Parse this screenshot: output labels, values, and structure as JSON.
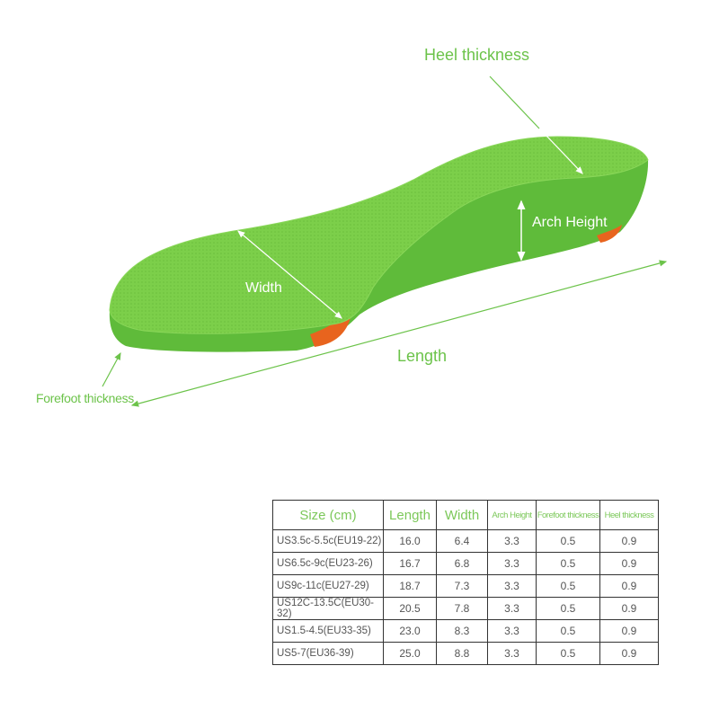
{
  "labels": {
    "heel_thickness": "Heel thickness",
    "arch_height": "Arch Height",
    "width": "Width",
    "length": "Length",
    "forefoot_thickness": "Forefoot thickness"
  },
  "colors": {
    "insole_top": "#7ccf4a",
    "insole_side": "#5fbb3a",
    "accent_orange": "#e8641e",
    "label_green": "#6cc34a"
  },
  "table": {
    "headers": [
      "Size (cm)",
      "Length",
      "Width",
      "Arch Height",
      "Forefoot thickness",
      "Heel thickness"
    ],
    "rows": [
      [
        "US3.5c-5.5c(EU19-22)",
        "16.0",
        "6.4",
        "3.3",
        "0.5",
        "0.9"
      ],
      [
        "US6.5c-9c(EU23-26)",
        "16.7",
        "6.8",
        "3.3",
        "0.5",
        "0.9"
      ],
      [
        "US9c-11c(EU27-29)",
        "18.7",
        "7.3",
        "3.3",
        "0.5",
        "0.9"
      ],
      [
        "US12C-13.5C(EU30-32)",
        "20.5",
        "7.8",
        "3.3",
        "0.5",
        "0.9"
      ],
      [
        "US1.5-4.5(EU33-35)",
        "23.0",
        "8.3",
        "3.3",
        "0.5",
        "0.9"
      ],
      [
        "US5-7(EU36-39)",
        "25.0",
        "8.8",
        "3.3",
        "0.5",
        "0.9"
      ]
    ]
  }
}
